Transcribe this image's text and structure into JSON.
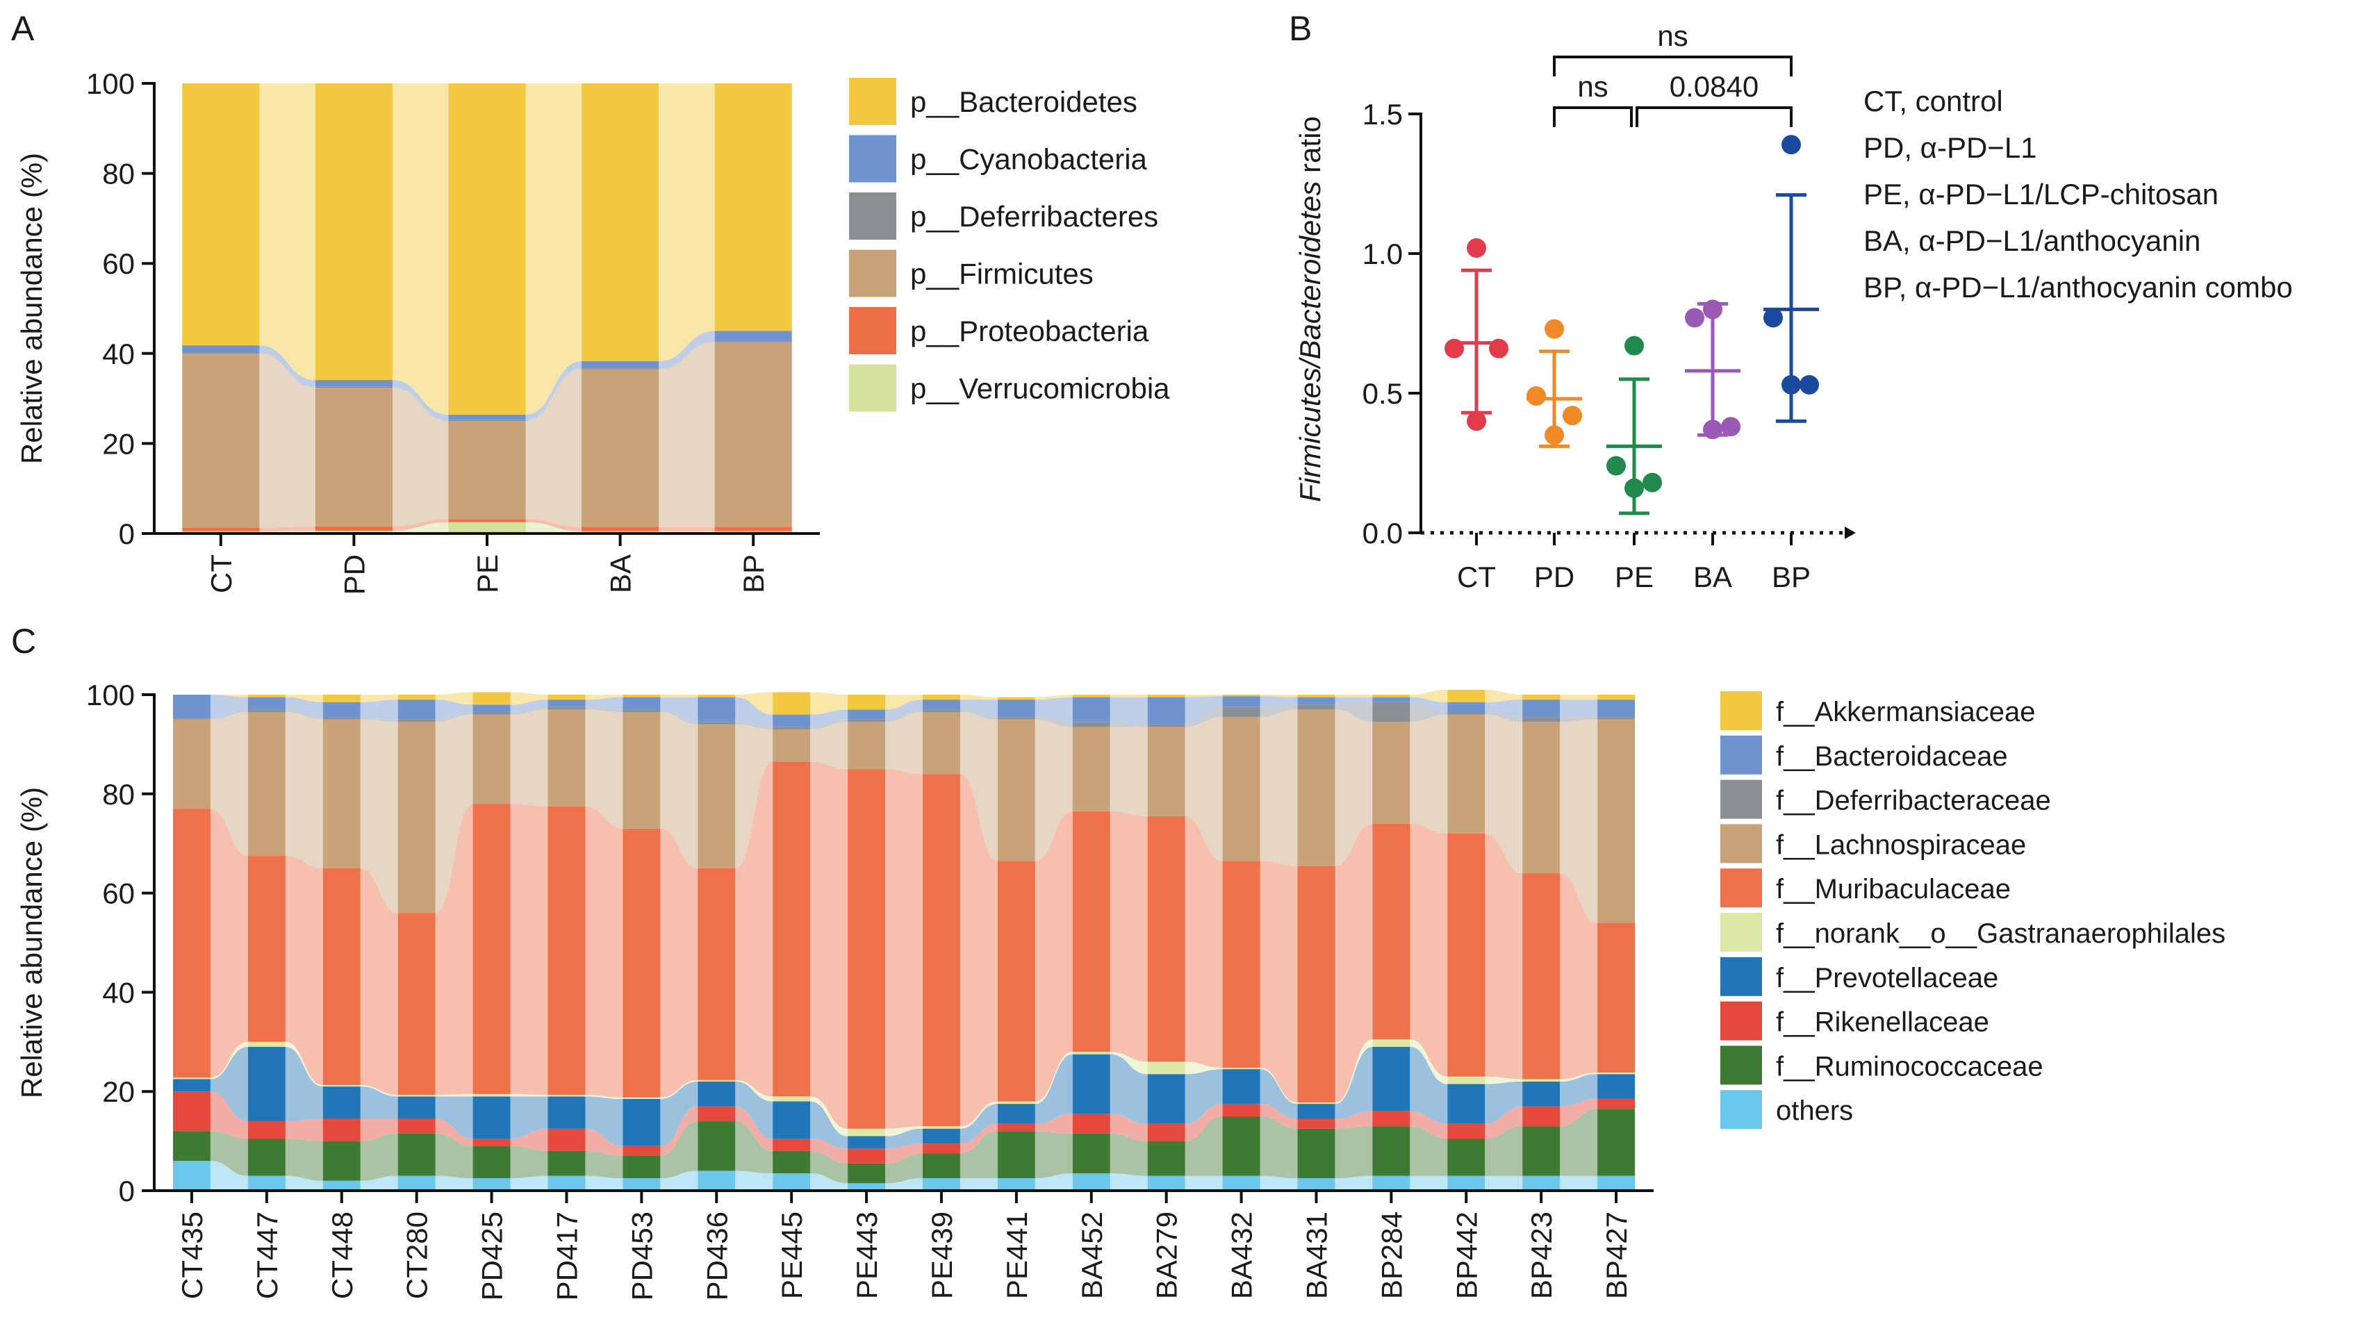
{
  "panels": {
    "A": "A",
    "B": "B",
    "C": "C"
  },
  "chart_data": [
    {
      "panel": "A",
      "type": "bar",
      "stacked": true,
      "ylabel": "Relative abundance (%)",
      "ylim": [
        0,
        100
      ],
      "yticks": [
        0,
        20,
        40,
        60,
        80,
        100
      ],
      "categories": [
        "CT",
        "PD",
        "PE",
        "BA",
        "BP"
      ],
      "series": [
        {
          "name": "p__Verrucomicrobia",
          "color": "#d3e19c",
          "values": [
            0.5,
            0.6,
            2.5,
            0.5,
            0.5
          ]
        },
        {
          "name": "p__Proteobacteria",
          "color": "#ec6f45",
          "values": [
            0.8,
            1.0,
            0.7,
            1.0,
            1.0
          ]
        },
        {
          "name": "p__Firmicutes",
          "color": "#c8a37a",
          "values": [
            38.7,
            30.8,
            21.8,
            35.0,
            41.0
          ]
        },
        {
          "name": "p__Deferribacteres",
          "color": "#8a8f94",
          "values": [
            0.2,
            0.2,
            0.2,
            0.2,
            0.2
          ]
        },
        {
          "name": "p__Cyanobacteria",
          "color": "#6f93cf",
          "values": [
            1.6,
            1.5,
            1.2,
            1.6,
            2.3
          ]
        },
        {
          "name": "p__Bacteroidetes",
          "color": "#f2c840",
          "values": [
            58.2,
            65.9,
            73.6,
            61.7,
            55.0
          ]
        }
      ],
      "legend_order": [
        "p__Bacteroidetes",
        "p__Cyanobacteria",
        "p__Deferribacteres",
        "p__Firmicutes",
        "p__Proteobacteria",
        "p__Verrucomicrobia"
      ]
    },
    {
      "panel": "B",
      "type": "scatter",
      "ylabel_italic": "Firmicutes/Bacteroidetes",
      "ylabel_plain": " ratio",
      "ylim": [
        0,
        1.5
      ],
      "yticks": [
        "0.0",
        "0.5",
        "1.0",
        "1.5"
      ],
      "categories": [
        "CT",
        "PD",
        "PE",
        "BA",
        "BP"
      ],
      "groups": [
        {
          "name": "CT",
          "color": "#e23c4b",
          "points": [
            1.02,
            0.66,
            0.66,
            0.4
          ],
          "mean": 0.68,
          "sd_low": 0.43,
          "sd_high": 0.94
        },
        {
          "name": "PD",
          "color": "#ef8a26",
          "points": [
            0.73,
            0.49,
            0.42,
            0.35
          ],
          "mean": 0.48,
          "sd_low": 0.31,
          "sd_high": 0.65
        },
        {
          "name": "PE",
          "color": "#1f8a4c",
          "points": [
            0.67,
            0.24,
            0.18,
            0.16
          ],
          "mean": 0.31,
          "sd_low": 0.07,
          "sd_high": 0.55
        },
        {
          "name": "BA",
          "color": "#9b59b6",
          "points": [
            0.8,
            0.77,
            0.38,
            0.37
          ],
          "mean": 0.58,
          "sd_low": 0.35,
          "sd_high": 0.82
        },
        {
          "name": "BP",
          "color": "#1b4a9c",
          "points": [
            1.39,
            0.77,
            0.53,
            0.53
          ],
          "mean": 0.8,
          "sd_low": 0.4,
          "sd_high": 1.21
        }
      ],
      "comparisons": [
        {
          "from": "PD",
          "to": "BP",
          "label": "ns",
          "level": 2
        },
        {
          "from": "PD",
          "to": "PE",
          "label": "ns",
          "level": 1
        },
        {
          "from": "PE",
          "to": "BP",
          "label": "0.0840",
          "level": 1
        }
      ],
      "legend": [
        "CT, control",
        "PD, α-PD−L1",
        "PE, α-PD−L1/LCP-chitosan",
        "BA, α-PD−L1/anthocyanin",
        "BP, α-PD−L1/anthocyanin combo"
      ]
    },
    {
      "panel": "C",
      "type": "bar",
      "stacked": true,
      "ylabel": "Relative abundance (%)",
      "ylim": [
        0,
        100
      ],
      "yticks": [
        0,
        20,
        40,
        60,
        80,
        100
      ],
      "categories": [
        "CT435",
        "CT447",
        "CT448",
        "CT280",
        "PD425",
        "PD417",
        "PD453",
        "PD436",
        "PE445",
        "PE443",
        "PE439",
        "PE441",
        "BA452",
        "BA279",
        "BA432",
        "BA431",
        "BP284",
        "BP442",
        "BP423",
        "BP427"
      ],
      "series": [
        {
          "name": "others",
          "color": "#6cc7ec",
          "values": [
            6,
            3,
            2,
            3,
            2.5,
            3,
            2.5,
            4,
            3.5,
            1.5,
            2.5,
            2.5,
            3.5,
            3,
            3,
            2.5,
            3,
            3,
            3,
            3
          ]
        },
        {
          "name": "f__Ruminococcaceae",
          "color": "#3f7a35",
          "values": [
            6,
            7.5,
            8,
            8.5,
            6.5,
            5,
            4.5,
            10,
            4.5,
            4,
            5,
            9.5,
            8,
            7,
            12,
            10,
            10,
            7.5,
            10,
            13.5
          ]
        },
        {
          "name": "f__Rikenellaceae",
          "color": "#e4493c",
          "values": [
            8,
            3.5,
            4.5,
            3,
            1.5,
            4.5,
            2,
            3,
            2.5,
            3,
            2,
            1.5,
            4,
            3.5,
            2.5,
            2,
            3,
            3,
            4,
            2
          ]
        },
        {
          "name": "f__Prevotellaceae",
          "color": "#2176b8",
          "values": [
            2.5,
            15,
            6.5,
            4.5,
            8.5,
            6.5,
            9.5,
            5,
            7.5,
            2.5,
            3,
            4,
            12,
            10,
            7,
            3,
            13,
            8,
            5,
            5
          ]
        },
        {
          "name": "f__norank__o__Gastranaerophilales",
          "color": "#dbe8a6",
          "values": [
            0.3,
            1,
            0.3,
            0.3,
            0.5,
            0.3,
            0.3,
            0.3,
            1,
            1.5,
            0.5,
            0.5,
            0.5,
            2.5,
            0.3,
            0.3,
            1.5,
            1.5,
            0.5,
            0.3
          ]
        },
        {
          "name": "f__Muribaculaceae",
          "color": "#ee7149",
          "values": [
            54.2,
            37.5,
            43.7,
            36.7,
            58.5,
            58.2,
            54.2,
            42.7,
            67.5,
            72.5,
            71,
            48.5,
            48.5,
            49.5,
            41.7,
            47.7,
            43.5,
            49,
            41.5,
            30.2
          ]
        },
        {
          "name": "f__Lachnospiraceae",
          "color": "#c8a37a",
          "values": [
            18,
            29,
            30,
            38.5,
            18,
            19.5,
            23.5,
            29,
            6.5,
            9.5,
            12.5,
            28.5,
            17,
            18,
            29,
            31.5,
            20.5,
            24,
            30.5,
            41
          ]
        },
        {
          "name": "f__Deferribacteraceae",
          "color": "#8a8f94",
          "values": [
            0.2,
            0.5,
            0.3,
            0.5,
            0.5,
            0.5,
            0.5,
            0.5,
            0.5,
            0.5,
            0.5,
            0.5,
            1,
            0.5,
            2,
            1,
            4,
            0.5,
            1,
            0.5
          ]
        },
        {
          "name": "f__Bacteroidaceae",
          "color": "#6f93cf",
          "values": [
            4.8,
            2.5,
            3.2,
            4,
            1.5,
            1.5,
            2.5,
            5,
            2.5,
            2,
            2,
            3.5,
            5,
            5.5,
            2.2,
            1.5,
            1,
            2,
            3.5,
            3.5
          ]
        },
        {
          "name": "f__Akkermansiaceae",
          "color": "#f2c840",
          "values": [
            0,
            0.5,
            1.5,
            1,
            2.5,
            1,
            0.5,
            0.5,
            4.5,
            3,
            1,
            0.5,
            0.5,
            0.5,
            0.3,
            0.5,
            0.5,
            2.5,
            1,
            1
          ]
        }
      ],
      "legend_order": [
        "f__Akkermansiaceae",
        "f__Bacteroidaceae",
        "f__Deferribacteraceae",
        "f__Lachnospiraceae",
        "f__Muribaculaceae",
        "f__norank__o__Gastranaerophilales",
        "f__Prevotellaceae",
        "f__Rikenellaceae",
        "f__Ruminococcaceae",
        "others"
      ]
    }
  ]
}
